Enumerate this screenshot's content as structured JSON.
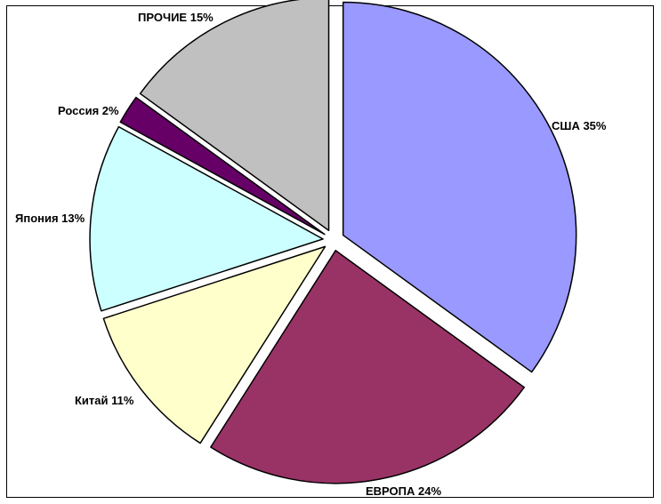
{
  "chart_data": {
    "type": "pie",
    "exploded": true,
    "slices": [
      {
        "label": "США 35%",
        "value": 35,
        "color": "#9999FF"
      },
      {
        "label": "ЕВРОПА 24%",
        "value": 24,
        "color": "#993366"
      },
      {
        "label": "Китай 11%",
        "value": 11,
        "color": "#FFFFCC"
      },
      {
        "label": "Япония 13%",
        "value": 13,
        "color": "#CCFFFF"
      },
      {
        "label": "Россия 2%",
        "value": 2,
        "color": "#660066"
      },
      {
        "label": "ПРОЧИЕ 15%",
        "value": 15,
        "color": "#C0C0C0"
      }
    ],
    "legend": "none",
    "start": "top",
    "direction": "clockwise"
  }
}
